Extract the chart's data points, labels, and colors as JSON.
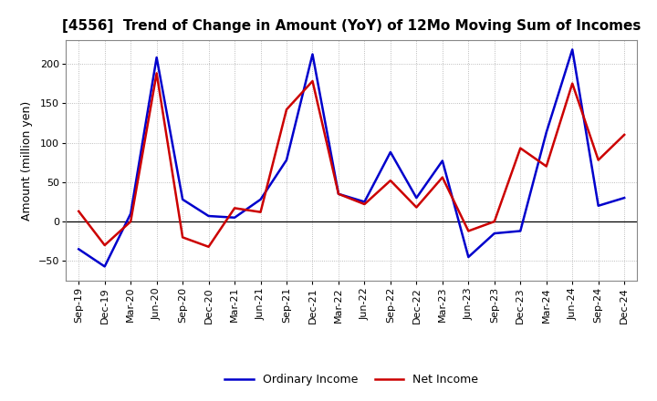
{
  "title": "[4556]  Trend of Change in Amount (YoY) of 12Mo Moving Sum of Incomes",
  "ylabel": "Amount (million yen)",
  "labels": [
    "Sep-19",
    "Dec-19",
    "Mar-20",
    "Jun-20",
    "Sep-20",
    "Dec-20",
    "Mar-21",
    "Jun-21",
    "Sep-21",
    "Dec-21",
    "Mar-22",
    "Jun-22",
    "Sep-22",
    "Dec-22",
    "Mar-23",
    "Jun-23",
    "Sep-23",
    "Dec-23",
    "Mar-24",
    "Jun-24",
    "Sep-24",
    "Dec-24"
  ],
  "ordinary_income": [
    -35,
    -57,
    10,
    208,
    28,
    7,
    5,
    28,
    78,
    212,
    35,
    25,
    88,
    30,
    77,
    -45,
    -15,
    -12,
    113,
    218,
    20,
    30
  ],
  "net_income": [
    13,
    -30,
    0,
    188,
    -20,
    -32,
    17,
    12,
    142,
    178,
    35,
    22,
    52,
    18,
    56,
    -12,
    0,
    93,
    70,
    175,
    78,
    110
  ],
  "ordinary_color": "#0000CC",
  "net_color": "#CC0000",
  "ylim": [
    -75,
    230
  ],
  "yticks": [
    -50,
    0,
    50,
    100,
    150,
    200
  ],
  "background_color": "#FFFFFF",
  "grid_color": "#AAAAAA",
  "title_fontsize": 11,
  "axis_fontsize": 9,
  "tick_fontsize": 8,
  "legend_fontsize": 9,
  "linewidth": 1.8
}
